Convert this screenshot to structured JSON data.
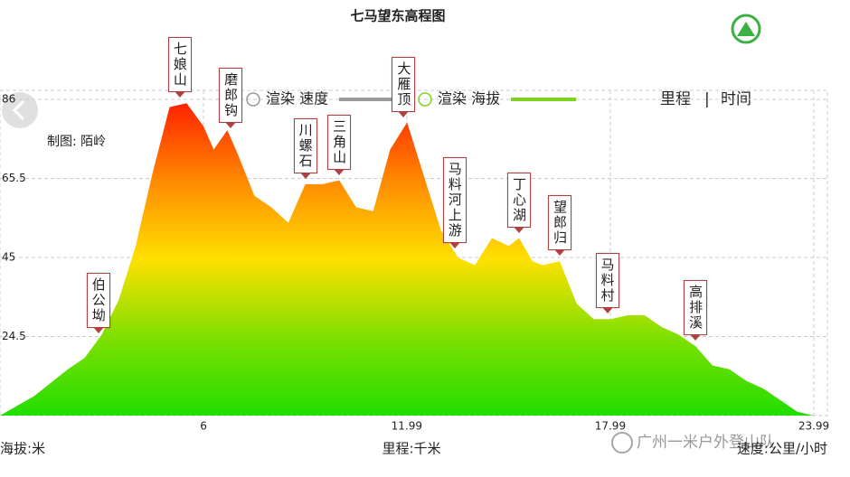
{
  "title": "七马望东高程图",
  "credit": "制图: 陌岭",
  "toggle": {
    "left": "里程",
    "right": "时间"
  },
  "watermark": "广州一米户外登山队",
  "chart_data": {
    "type": "area",
    "x": [
      0,
      1,
      2,
      2.5,
      3,
      3.5,
      4,
      4.5,
      5,
      5.5,
      6,
      6.3,
      6.7,
      7,
      7.5,
      8,
      8.5,
      9,
      9.5,
      10,
      10.5,
      11,
      11.5,
      12,
      12.5,
      13,
      13.5,
      14,
      14.5,
      15,
      15.3,
      15.7,
      16,
      16.5,
      17,
      17.5,
      18,
      18.5,
      19,
      19.5,
      20,
      20.5,
      21,
      21.5,
      22,
      22.5,
      23,
      23.5,
      23.99
    ],
    "values": [
      4,
      9,
      16,
      19,
      25,
      34,
      48,
      67,
      84,
      85,
      79,
      73,
      78,
      72,
      61,
      58,
      54,
      64,
      64,
      65,
      58,
      57,
      73,
      80,
      66,
      52,
      45,
      43,
      50,
      48,
      50,
      44,
      43,
      44,
      33,
      29,
      29,
      30,
      30,
      27,
      25,
      22,
      17,
      16,
      13,
      11,
      8,
      5,
      4
    ],
    "gradient": [
      "#ff2200",
      "#ff8a00",
      "#ffe000",
      "#7ee000",
      "#22dd00"
    ],
    "xlim": [
      0,
      23.99
    ],
    "ylim": [
      4,
      86
    ],
    "xticks": [
      6,
      11.99,
      17.99,
      23.99
    ],
    "yticks": [
      86,
      65.5,
      45,
      24.5
    ],
    "grid": true,
    "xlabel": "里程:千米",
    "ylabel": "海拔:米",
    "y2label": "速度:公里/小时",
    "legend": [
      {
        "label": "渲染 速度",
        "color": "#9a9a9a"
      },
      {
        "label": "渲染 海拔",
        "color": "#7ed321"
      }
    ],
    "annotations": [
      {
        "text": "伯公坳",
        "x": 2.9,
        "y": 24
      },
      {
        "text": "七娘山",
        "x": 5.3,
        "y": 85
      },
      {
        "text": "磨郎钩",
        "x": 6.8,
        "y": 77
      },
      {
        "text": "川螺石",
        "x": 9.0,
        "y": 64
      },
      {
        "text": "三角山",
        "x": 10.0,
        "y": 65
      },
      {
        "text": "大雁顶",
        "x": 11.9,
        "y": 80
      },
      {
        "text": "马料河上游",
        "x": 13.4,
        "y": 46
      },
      {
        "text": "丁心湖",
        "x": 15.3,
        "y": 50
      },
      {
        "text": "望郎归",
        "x": 16.5,
        "y": 44
      },
      {
        "text": "马料村",
        "x": 17.9,
        "y": 29
      },
      {
        "text": "高排溪",
        "x": 20.5,
        "y": 22
      }
    ]
  }
}
